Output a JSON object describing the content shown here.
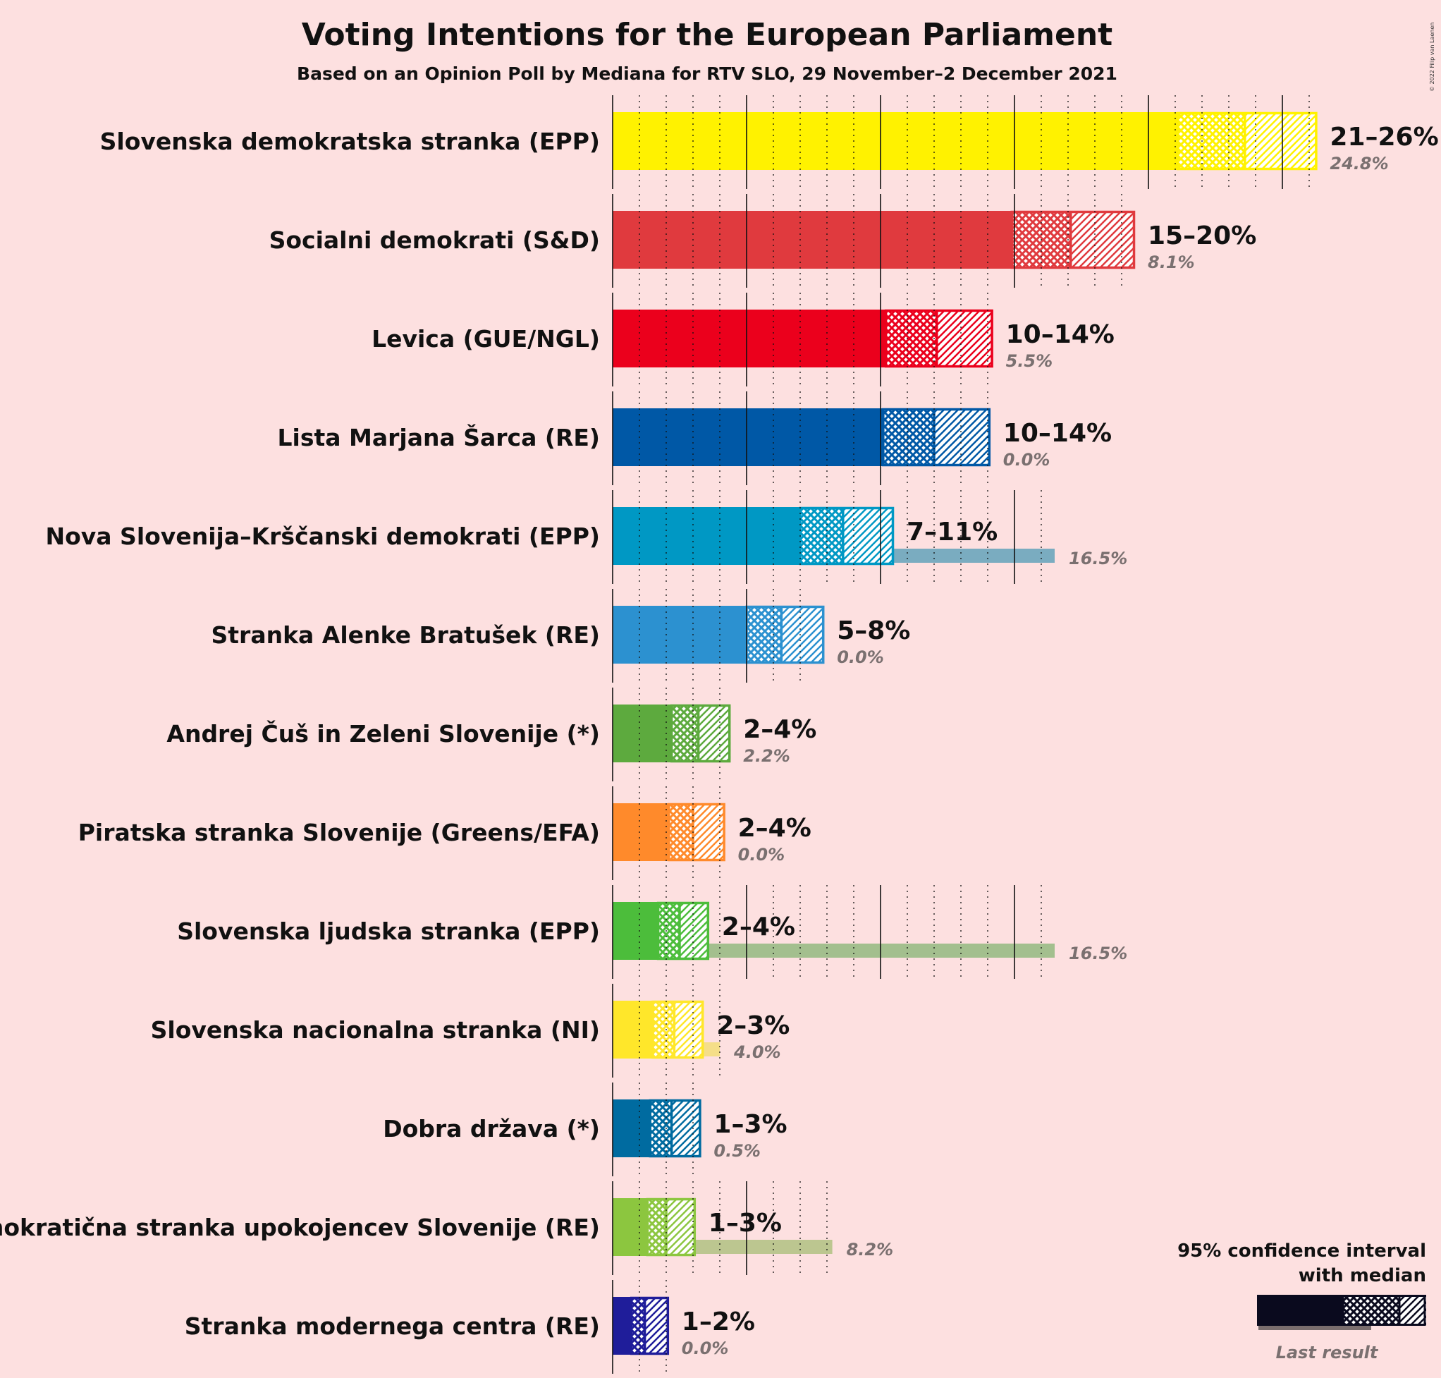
{
  "chart_data": {
    "type": "bar",
    "title": "Voting Intentions for the European Parliament",
    "subtitle": "Based on an Opinion Poll by Mediana for RTV SLO, 29 November–2 December 2021",
    "copyright": "© 2022 Filip van Laenen",
    "legend": {
      "ci_label_line1": "95% confidence interval",
      "ci_label_line2": "with median",
      "last_result_label": "Last result",
      "position": "bottom-right"
    },
    "xlim": [
      0,
      27
    ],
    "series_fields": [
      "ci_low",
      "median",
      "ci_high",
      "last_result"
    ],
    "parties": [
      {
        "name": "Slovenska demokratska stranka (EPP)",
        "color": "#fff200",
        "last_color": "#e0d36a",
        "ci_low": 21.1,
        "median": 23.6,
        "ci_high": 26.3,
        "range_label": "21–26%",
        "last_result": 24.8,
        "last_label": "24.8%"
      },
      {
        "name": "Socialni demokrati (S&D)",
        "color": "#e03a3e",
        "last_color": "#e07e82",
        "ci_low": 14.9,
        "median": 17.1,
        "ci_high": 19.5,
        "range_label": "15–20%",
        "last_result": 8.1,
        "last_label": "8.1%"
      },
      {
        "name": "Levica (GUE/NGL)",
        "color": "#eb001c",
        "last_color": "#e07a88",
        "ci_low": 10.2,
        "median": 12.1,
        "ci_high": 14.2,
        "range_label": "10–14%",
        "last_result": 5.5,
        "last_label": "5.5%"
      },
      {
        "name": "Lista Marjana Šarca (RE)",
        "color": "#0058a6",
        "last_color": "#6a90b8",
        "ci_low": 10.1,
        "median": 12.0,
        "ci_high": 14.1,
        "range_label": "10–14%",
        "last_result": 0.0,
        "last_label": "0.0%"
      },
      {
        "name": "Nova Slovenija–Krščanski demokrati (EPP)",
        "color": "#0098c4",
        "last_color": "#7aacc0",
        "ci_low": 7.0,
        "median": 8.6,
        "ci_high": 10.5,
        "range_label": "7–11%",
        "last_result": 16.5,
        "last_label": "16.5%"
      },
      {
        "name": "Stranka Alenke Bratušek (RE)",
        "color": "#2c91d0",
        "last_color": "#84b4d4",
        "ci_low": 5.0,
        "median": 6.3,
        "ci_high": 7.9,
        "range_label": "5–8%",
        "last_result": 0.0,
        "last_label": "0.0%"
      },
      {
        "name": "Andrej Čuš in Zeleni Slovenije (*)",
        "color": "#5daa3e",
        "last_color": "#a6c190",
        "ci_low": 2.2,
        "median": 3.2,
        "ci_high": 4.4,
        "range_label": "2–4%",
        "last_result": 2.2,
        "last_label": "2.2%"
      },
      {
        "name": "Piratska stranka Slovenije (Greens/EFA)",
        "color": "#ff8a2b",
        "last_color": "#e0b088",
        "ci_low": 2.1,
        "median": 3.0,
        "ci_high": 4.2,
        "range_label": "2–4%",
        "last_result": 0.0,
        "last_label": "0.0%"
      },
      {
        "name": "Slovenska ljudska stranka (EPP)",
        "color": "#4cbd3b",
        "last_color": "#a3bf8e",
        "ci_low": 1.7,
        "median": 2.5,
        "ci_high": 3.6,
        "range_label": "2–4%",
        "last_result": 16.5,
        "last_label": "16.5%"
      },
      {
        "name": "Slovenska nacionalna stranka (NI)",
        "color": "#ffe72a",
        "last_color": "#f5de88",
        "ci_low": 1.5,
        "median": 2.3,
        "ci_high": 3.4,
        "range_label": "2–3%",
        "last_result": 4.0,
        "last_label": "4.0%"
      },
      {
        "name": "Dobra država (*)",
        "color": "#006ba0",
        "last_color": "#7c9db4",
        "ci_low": 1.4,
        "median": 2.2,
        "ci_high": 3.3,
        "range_label": "1–3%",
        "last_result": 0.5,
        "last_label": "0.5%"
      },
      {
        "name": "Demokratična stranka upokojencev Slovenije (RE)",
        "color": "#8cc63f",
        "last_color": "#bcc690",
        "ci_low": 1.3,
        "median": 2.0,
        "ci_high": 3.1,
        "range_label": "1–3%",
        "last_result": 8.2,
        "last_label": "8.2%"
      },
      {
        "name": "Stranka modernega centra (RE)",
        "color": "#1f1d9a",
        "last_color": "#8a88b4",
        "ci_low": 0.7,
        "median": 1.2,
        "ci_high": 2.1,
        "range_label": "1–2%",
        "last_result": 0.0,
        "last_label": "0.0%"
      }
    ]
  }
}
